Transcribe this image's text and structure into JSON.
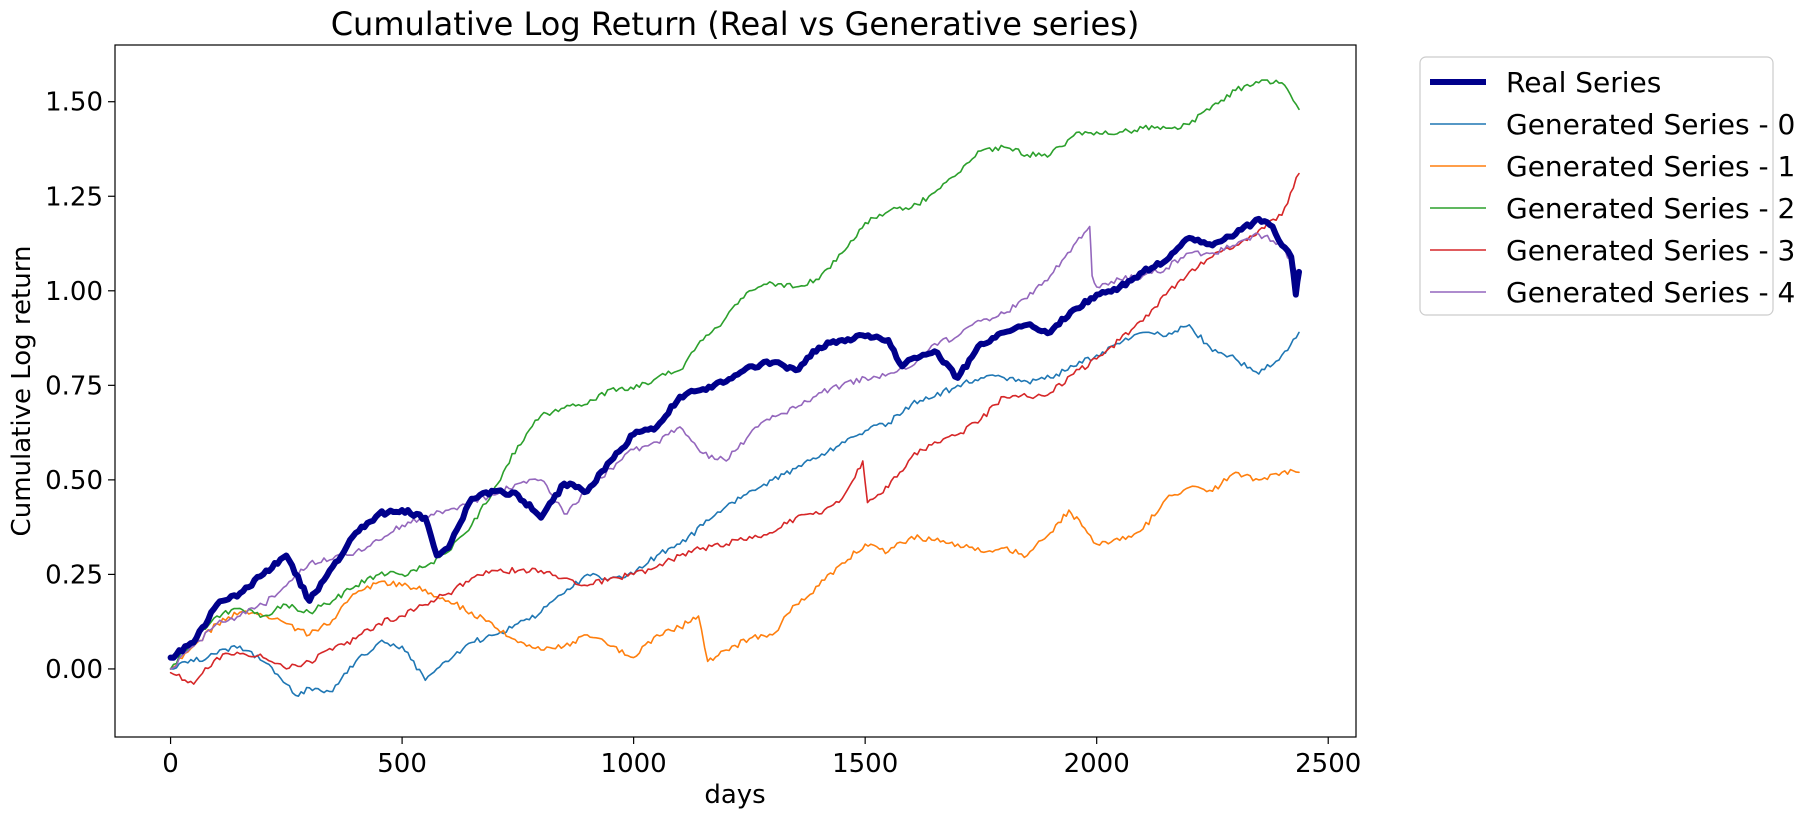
{
  "chart_data": {
    "type": "line",
    "title": "Cumulative Log Return (Real vs Generative series)",
    "xlabel": "days",
    "ylabel": "Cumulative Log return",
    "xlim": [
      -120,
      2560
    ],
    "ylim": [
      -0.18,
      1.65
    ],
    "xticks": [
      0,
      500,
      1000,
      1500,
      2000,
      2500
    ],
    "xtick_labels": [
      "0",
      "500",
      "1000",
      "1500",
      "2000",
      "2500"
    ],
    "yticks": [
      0.0,
      0.25,
      0.5,
      0.75,
      1.0,
      1.25,
      1.5
    ],
    "ytick_labels": [
      "0.00",
      "0.25",
      "0.50",
      "0.75",
      "1.00",
      "1.25",
      "1.50"
    ],
    "grid": false,
    "legend_position": "outside-top-right",
    "series": [
      {
        "name": "Real Series",
        "color": "#00008b",
        "width": 6,
        "x": [
          0,
          50,
          100,
          150,
          200,
          250,
          300,
          350,
          400,
          450,
          500,
          550,
          575,
          600,
          650,
          700,
          750,
          800,
          850,
          900,
          950,
          1000,
          1050,
          1100,
          1150,
          1200,
          1250,
          1300,
          1350,
          1400,
          1450,
          1500,
          1550,
          1580,
          1600,
          1650,
          1700,
          1750,
          1800,
          1850,
          1900,
          1950,
          2000,
          2050,
          2100,
          2150,
          2200,
          2250,
          2300,
          2350,
          2380,
          2400,
          2420,
          2430,
          2437
        ],
        "y": [
          0.03,
          0.07,
          0.17,
          0.2,
          0.25,
          0.3,
          0.18,
          0.27,
          0.36,
          0.41,
          0.42,
          0.4,
          0.3,
          0.32,
          0.45,
          0.47,
          0.46,
          0.4,
          0.49,
          0.47,
          0.55,
          0.62,
          0.64,
          0.72,
          0.74,
          0.76,
          0.8,
          0.81,
          0.79,
          0.85,
          0.87,
          0.88,
          0.87,
          0.8,
          0.82,
          0.84,
          0.77,
          0.86,
          0.89,
          0.91,
          0.89,
          0.95,
          0.99,
          1.01,
          1.05,
          1.08,
          1.14,
          1.12,
          1.15,
          1.19,
          1.17,
          1.12,
          1.09,
          0.99,
          1.05
        ]
      },
      {
        "name": "Generated Series - 0",
        "color": "#1f77b4",
        "width": 1.6,
        "x": [
          0,
          50,
          100,
          150,
          200,
          250,
          270,
          300,
          350,
          400,
          450,
          500,
          550,
          600,
          650,
          700,
          750,
          800,
          850,
          900,
          950,
          1000,
          1050,
          1100,
          1150,
          1200,
          1250,
          1300,
          1350,
          1400,
          1450,
          1500,
          1550,
          1600,
          1650,
          1700,
          1750,
          1800,
          1850,
          1900,
          1950,
          2000,
          2050,
          2100,
          2150,
          2200,
          2250,
          2300,
          2350,
          2400,
          2437
        ],
        "y": [
          0.0,
          0.02,
          0.04,
          0.06,
          0.02,
          -0.04,
          -0.07,
          -0.05,
          -0.06,
          0.02,
          0.07,
          0.06,
          -0.03,
          0.02,
          0.07,
          0.09,
          0.12,
          0.15,
          0.2,
          0.25,
          0.24,
          0.25,
          0.3,
          0.33,
          0.38,
          0.43,
          0.47,
          0.5,
          0.53,
          0.56,
          0.6,
          0.63,
          0.65,
          0.7,
          0.72,
          0.75,
          0.77,
          0.77,
          0.76,
          0.77,
          0.8,
          0.83,
          0.86,
          0.89,
          0.88,
          0.91,
          0.84,
          0.82,
          0.78,
          0.83,
          0.89
        ]
      },
      {
        "name": "Generated Series - 1",
        "color": "#ff7f0e",
        "width": 1.6,
        "x": [
          0,
          50,
          100,
          150,
          200,
          250,
          300,
          350,
          400,
          450,
          500,
          550,
          600,
          650,
          700,
          750,
          800,
          850,
          900,
          950,
          1000,
          1050,
          1100,
          1140,
          1160,
          1200,
          1250,
          1300,
          1350,
          1400,
          1450,
          1500,
          1550,
          1600,
          1650,
          1700,
          1750,
          1800,
          1850,
          1900,
          1940,
          1980,
          2000,
          2050,
          2100,
          2150,
          2200,
          2250,
          2300,
          2350,
          2400,
          2437
        ],
        "y": [
          0.0,
          0.06,
          0.12,
          0.15,
          0.14,
          0.12,
          0.09,
          0.13,
          0.2,
          0.23,
          0.22,
          0.21,
          0.18,
          0.15,
          0.11,
          0.07,
          0.05,
          0.06,
          0.09,
          0.06,
          0.03,
          0.09,
          0.11,
          0.14,
          0.02,
          0.05,
          0.08,
          0.09,
          0.17,
          0.22,
          0.28,
          0.33,
          0.31,
          0.35,
          0.34,
          0.33,
          0.31,
          0.32,
          0.3,
          0.36,
          0.42,
          0.36,
          0.33,
          0.34,
          0.37,
          0.45,
          0.48,
          0.47,
          0.52,
          0.5,
          0.52,
          0.52
        ]
      },
      {
        "name": "Generated Series - 2",
        "color": "#2ca02c",
        "width": 1.6,
        "x": [
          0,
          50,
          100,
          150,
          200,
          250,
          300,
          350,
          400,
          450,
          500,
          550,
          600,
          650,
          700,
          750,
          800,
          850,
          900,
          950,
          1000,
          1050,
          1100,
          1150,
          1200,
          1250,
          1300,
          1350,
          1400,
          1450,
          1500,
          1550,
          1600,
          1650,
          1700,
          1750,
          1800,
          1850,
          1900,
          1950,
          2000,
          2050,
          2100,
          2150,
          2200,
          2250,
          2300,
          2350,
          2400,
          2437
        ],
        "y": [
          0.0,
          0.08,
          0.14,
          0.16,
          0.14,
          0.17,
          0.15,
          0.18,
          0.22,
          0.25,
          0.25,
          0.27,
          0.31,
          0.38,
          0.48,
          0.59,
          0.67,
          0.69,
          0.7,
          0.74,
          0.74,
          0.77,
          0.79,
          0.87,
          0.93,
          1.0,
          1.02,
          1.01,
          1.03,
          1.1,
          1.18,
          1.21,
          1.22,
          1.26,
          1.31,
          1.37,
          1.38,
          1.36,
          1.36,
          1.41,
          1.42,
          1.42,
          1.43,
          1.43,
          1.44,
          1.49,
          1.53,
          1.55,
          1.55,
          1.48
        ]
      },
      {
        "name": "Generated Series - 3",
        "color": "#d62728",
        "width": 1.6,
        "x": [
          0,
          50,
          100,
          150,
          200,
          250,
          300,
          350,
          400,
          450,
          500,
          550,
          600,
          650,
          700,
          750,
          800,
          850,
          900,
          950,
          1000,
          1050,
          1100,
          1150,
          1200,
          1250,
          1300,
          1350,
          1400,
          1450,
          1495,
          1505,
          1550,
          1600,
          1650,
          1700,
          1750,
          1800,
          1850,
          1900,
          1950,
          2000,
          2050,
          2100,
          2150,
          2200,
          2250,
          2300,
          2350,
          2400,
          2437
        ],
        "y": [
          -0.01,
          -0.04,
          0.03,
          0.04,
          0.03,
          0.0,
          0.02,
          0.05,
          0.08,
          0.12,
          0.14,
          0.17,
          0.2,
          0.24,
          0.26,
          0.26,
          0.26,
          0.24,
          0.22,
          0.24,
          0.25,
          0.27,
          0.3,
          0.32,
          0.33,
          0.35,
          0.36,
          0.4,
          0.41,
          0.45,
          0.55,
          0.44,
          0.48,
          0.56,
          0.6,
          0.62,
          0.66,
          0.72,
          0.72,
          0.73,
          0.78,
          0.82,
          0.87,
          0.92,
          0.99,
          1.05,
          1.09,
          1.12,
          1.16,
          1.2,
          1.31
        ]
      },
      {
        "name": "Generated Series - 4",
        "color": "#9467bd",
        "width": 1.6,
        "x": [
          0,
          50,
          100,
          150,
          200,
          250,
          300,
          350,
          400,
          450,
          500,
          550,
          600,
          650,
          700,
          750,
          800,
          850,
          900,
          950,
          1000,
          1050,
          1100,
          1150,
          1200,
          1250,
          1300,
          1350,
          1400,
          1450,
          1500,
          1550,
          1600,
          1650,
          1700,
          1750,
          1800,
          1850,
          1900,
          1950,
          1985,
          1990,
          2000,
          2050,
          2100,
          2150,
          2200,
          2250,
          2300,
          2350,
          2400,
          2437
        ],
        "y": [
          0.0,
          0.06,
          0.12,
          0.14,
          0.17,
          0.22,
          0.28,
          0.29,
          0.31,
          0.34,
          0.38,
          0.4,
          0.42,
          0.44,
          0.46,
          0.49,
          0.5,
          0.41,
          0.47,
          0.53,
          0.58,
          0.6,
          0.64,
          0.57,
          0.55,
          0.62,
          0.67,
          0.69,
          0.73,
          0.75,
          0.77,
          0.78,
          0.8,
          0.86,
          0.88,
          0.92,
          0.94,
          0.98,
          1.04,
          1.12,
          1.17,
          1.04,
          1.01,
          1.03,
          1.04,
          1.06,
          1.1,
          1.1,
          1.12,
          1.15,
          1.12,
          1.04
        ]
      }
    ]
  }
}
